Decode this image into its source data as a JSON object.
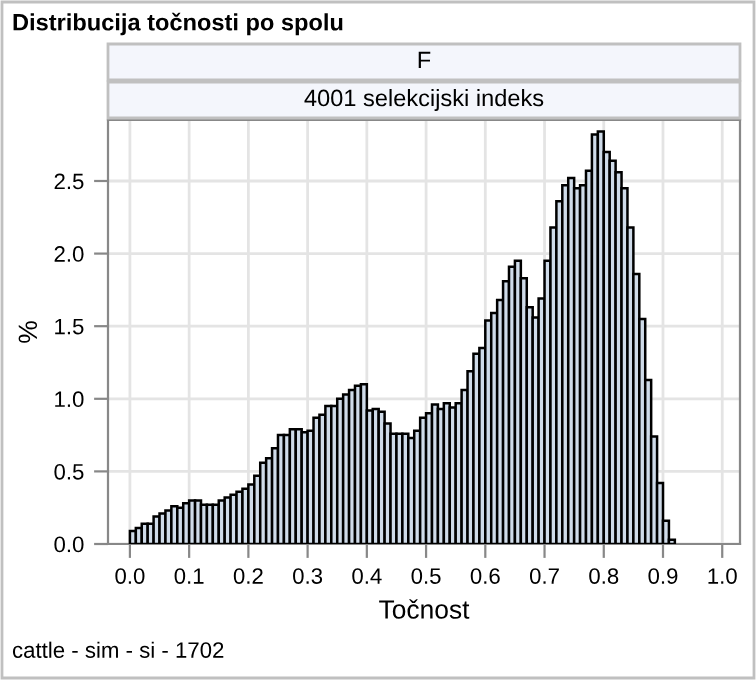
{
  "chart_data": {
    "type": "histogram",
    "title": "Distribucija točnosti po spolu",
    "subtitle": "F",
    "annotations": [
      "4001 selekcijski indeks",
      "cattle - sim - si - 1702"
    ],
    "xlabel": "Točnost",
    "ylabel": "%",
    "color": "#cfdbe9",
    "grid": true,
    "bins": [
      0.0,
      0.01,
      0.02,
      0.03,
      0.04,
      0.05,
      0.06,
      0.07,
      0.08,
      0.09,
      0.1,
      0.11,
      0.12,
      0.13,
      0.14,
      0.15,
      0.16,
      0.17,
      0.18,
      0.19,
      0.2,
      0.21,
      0.22,
      0.23,
      0.24,
      0.25,
      0.26,
      0.27,
      0.28,
      0.29,
      0.3,
      0.31,
      0.32,
      0.33,
      0.34,
      0.35,
      0.36,
      0.37,
      0.38,
      0.39,
      0.4,
      0.41,
      0.42,
      0.43,
      0.44,
      0.45,
      0.46,
      0.47,
      0.48,
      0.49,
      0.5,
      0.51,
      0.52,
      0.53,
      0.54,
      0.55,
      0.56,
      0.57,
      0.58,
      0.59,
      0.6,
      0.61,
      0.62,
      0.63,
      0.64,
      0.65,
      0.66,
      0.67,
      0.68,
      0.69,
      0.7,
      0.71,
      0.72,
      0.73,
      0.74,
      0.75,
      0.76,
      0.77,
      0.78,
      0.79,
      0.8,
      0.81,
      0.82,
      0.83,
      0.84,
      0.85,
      0.86,
      0.87,
      0.88,
      0.89,
      0.9,
      0.91,
      0.92
    ],
    "values": [
      0.09,
      0.11,
      0.14,
      0.14,
      0.19,
      0.21,
      0.23,
      0.26,
      0.25,
      0.28,
      0.3,
      0.3,
      0.27,
      0.27,
      0.27,
      0.3,
      0.32,
      0.34,
      0.36,
      0.38,
      0.41,
      0.47,
      0.56,
      0.59,
      0.66,
      0.75,
      0.75,
      0.79,
      0.79,
      0.77,
      0.78,
      0.87,
      0.89,
      0.95,
      0.95,
      1.0,
      1.03,
      1.06,
      1.09,
      1.1,
      0.92,
      0.93,
      0.91,
      0.83,
      0.76,
      0.76,
      0.76,
      0.73,
      0.78,
      0.87,
      0.9,
      0.96,
      0.93,
      0.97,
      0.94,
      0.97,
      1.06,
      1.19,
      1.31,
      1.35,
      1.54,
      1.59,
      1.68,
      1.81,
      1.91,
      1.95,
      1.83,
      1.63,
      1.56,
      1.69,
      1.95,
      2.18,
      2.36,
      2.47,
      2.52,
      2.45,
      2.47,
      2.57,
      2.82,
      2.84,
      2.7,
      2.64,
      2.56,
      2.45,
      2.18,
      1.86,
      1.55,
      1.13,
      0.74,
      0.42,
      0.16,
      0.03
    ],
    "xlim": [
      -0.037,
      1.03
    ],
    "ylim": [
      0,
      2.92
    ],
    "xticks": [
      {
        "value": 0.0,
        "label": "0.0"
      },
      0.1,
      0.2,
      0.3,
      0.4,
      0.5,
      0.6,
      0.7,
      0.8,
      0.9,
      {
        "value": 1.0,
        "label": "1.0"
      }
    ],
    "yticks": [
      {
        "value": 0.0,
        "label": "0.0"
      },
      0.5,
      {
        "value": 1.0,
        "label": "1.0"
      },
      1.5,
      {
        "value": 2.0,
        "label": "2.0"
      },
      2.5
    ]
  }
}
